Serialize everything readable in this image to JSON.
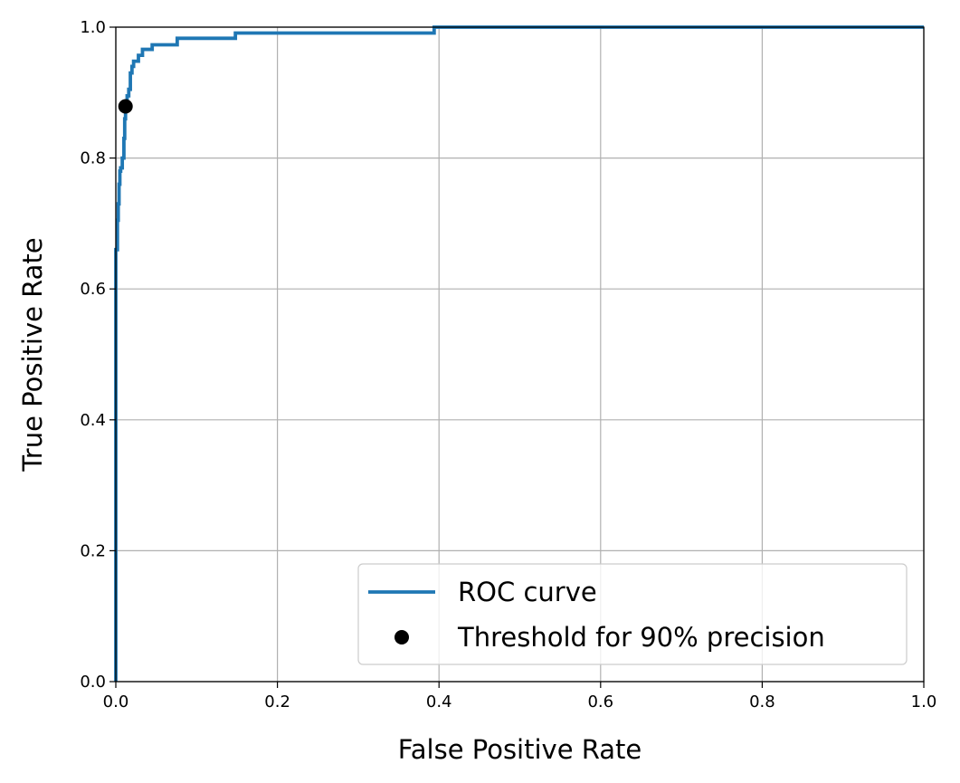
{
  "chart_data": {
    "type": "line",
    "title": "",
    "xlabel": "False Positive Rate",
    "ylabel": "True Positive Rate",
    "xlim": [
      0,
      1
    ],
    "ylim": [
      0,
      1
    ],
    "x_ticks": [
      "0.0",
      "0.2",
      "0.4",
      "0.6",
      "0.8",
      "1.0"
    ],
    "y_ticks": [
      "0.0",
      "0.2",
      "0.4",
      "0.6",
      "0.8",
      "1.0"
    ],
    "grid": true,
    "legend_position": "lower-right",
    "series": [
      {
        "name": "ROC curve",
        "color": "#1f77b4",
        "x": [
          0.0,
          0.0,
          0.0,
          0.002,
          0.002,
          0.003,
          0.003,
          0.004,
          0.004,
          0.005,
          0.005,
          0.006,
          0.006,
          0.008,
          0.008,
          0.01,
          0.01,
          0.011,
          0.011,
          0.012,
          0.012,
          0.014,
          0.014,
          0.016,
          0.016,
          0.018,
          0.018,
          0.02,
          0.02,
          0.022,
          0.022,
          0.028,
          0.028,
          0.033,
          0.033,
          0.045,
          0.045,
          0.076,
          0.076,
          0.148,
          0.148,
          0.394,
          0.394,
          1.0
        ],
        "y": [
          0.0,
          0.625,
          0.66,
          0.66,
          0.705,
          0.705,
          0.73,
          0.73,
          0.76,
          0.76,
          0.78,
          0.78,
          0.785,
          0.785,
          0.8,
          0.8,
          0.83,
          0.83,
          0.86,
          0.86,
          0.88,
          0.88,
          0.895,
          0.895,
          0.905,
          0.905,
          0.93,
          0.93,
          0.94,
          0.94,
          0.948,
          0.948,
          0.957,
          0.957,
          0.966,
          0.966,
          0.973,
          0.973,
          0.983,
          0.983,
          0.991,
          0.991,
          1.0,
          1.0
        ]
      },
      {
        "name": "Threshold for 90% precision",
        "color": "#000000",
        "marker": "circle",
        "x": [
          0.012
        ],
        "y": [
          0.879
        ]
      }
    ]
  }
}
